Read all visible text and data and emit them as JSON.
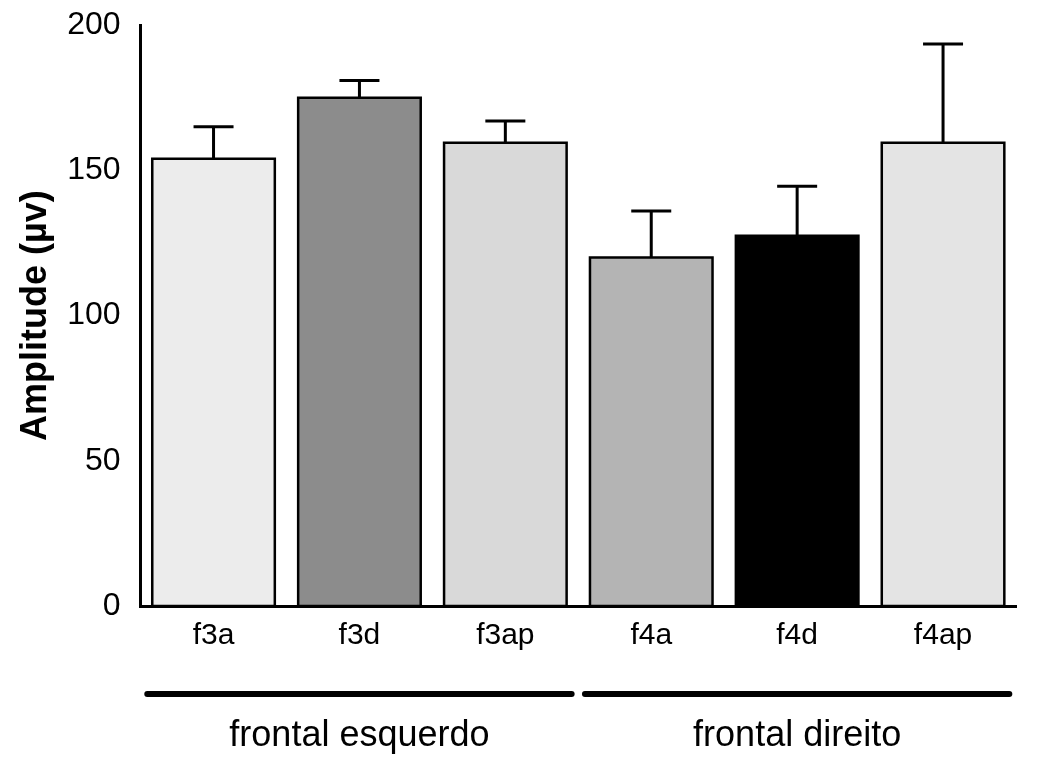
{
  "chart_data": {
    "type": "bar",
    "ylabel": "Amplitude (µv)",
    "categories": [
      "f3a",
      "f3d",
      "f3ap",
      "f4a",
      "f4d",
      "f4ap"
    ],
    "values": [
      154,
      175,
      159.5,
      120,
      127.5,
      159.5
    ],
    "errors": [
      11,
      6,
      7.5,
      16,
      17,
      34
    ],
    "colors": [
      "#ececec",
      "#8c8c8c",
      "#d9d9d9",
      "#b4b4b4",
      "#000000",
      "#e4e4e4"
    ],
    "ylim": [
      0,
      200
    ],
    "yticks": [
      0,
      50,
      100,
      150,
      200
    ],
    "grid": false,
    "legend": false,
    "annotations": [
      "frontal esquerdo",
      "frontal direito"
    ]
  }
}
